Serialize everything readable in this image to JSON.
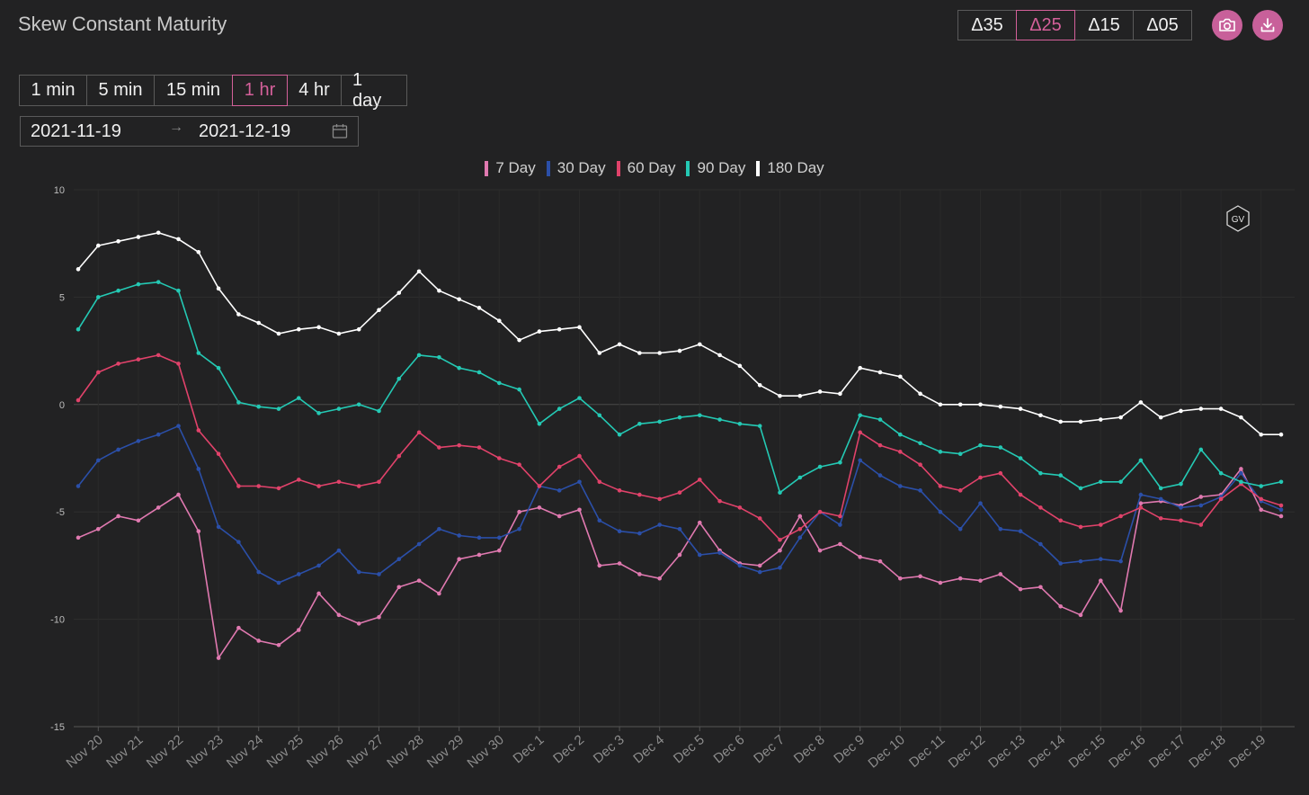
{
  "header": {
    "title": "Skew Constant Maturity"
  },
  "delta_buttons": [
    {
      "label": "Δ35",
      "active": false
    },
    {
      "label": "Δ25",
      "active": true
    },
    {
      "label": "Δ15",
      "active": false
    },
    {
      "label": "Δ05",
      "active": false
    }
  ],
  "icons": {
    "screenshot": "camera-icon",
    "download": "download-icon",
    "calendar": "calendar-icon",
    "watermark": "gv-logo"
  },
  "intervals": [
    {
      "label": "1 min",
      "active": false
    },
    {
      "label": "5 min",
      "active": false
    },
    {
      "label": "15 min",
      "active": false
    },
    {
      "label": "1 hr",
      "active": true
    },
    {
      "label": "4 hr",
      "active": false
    },
    {
      "label": "1 day",
      "active": false
    }
  ],
  "date_range": {
    "start": "2021-11-19",
    "separator": "→",
    "end": "2021-12-19"
  },
  "colors": {
    "accent": "#d4609a",
    "background": "#222223"
  },
  "chart_data": {
    "type": "line",
    "title": "",
    "xlabel": "",
    "ylabel": "",
    "ylim": [
      -15,
      10
    ],
    "yticks": [
      10,
      5,
      0,
      -5,
      -10,
      -15
    ],
    "x": [
      "Nov 19 12:00",
      "Nov 20",
      "Nov 20 12:00",
      "Nov 21",
      "Nov 21 12:00",
      "Nov 22",
      "Nov 22 12:00",
      "Nov 23",
      "Nov 23 12:00",
      "Nov 24",
      "Nov 24 12:00",
      "Nov 25",
      "Nov 25 12:00",
      "Nov 26",
      "Nov 26 12:00",
      "Nov 27",
      "Nov 27 12:00",
      "Nov 28",
      "Nov 28 12:00",
      "Nov 29",
      "Nov 29 12:00",
      "Nov 30",
      "Nov 30 12:00",
      "Dec 1",
      "Dec 1 12:00",
      "Dec 2",
      "Dec 2 12:00",
      "Dec 3",
      "Dec 3 12:00",
      "Dec 4",
      "Dec 4 12:00",
      "Dec 5",
      "Dec 5 12:00",
      "Dec 6",
      "Dec 6 12:00",
      "Dec 7",
      "Dec 7 12:00",
      "Dec 8",
      "Dec 8 12:00",
      "Dec 9",
      "Dec 9 12:00",
      "Dec 10",
      "Dec 10 12:00",
      "Dec 11",
      "Dec 11 12:00",
      "Dec 12",
      "Dec 12 12:00",
      "Dec 13",
      "Dec 13 12:00",
      "Dec 14",
      "Dec 14 12:00",
      "Dec 15",
      "Dec 15 12:00",
      "Dec 16",
      "Dec 16 12:00",
      "Dec 17",
      "Dec 17 12:00",
      "Dec 18",
      "Dec 18 12:00",
      "Dec 19",
      "Dec 19 12:00"
    ],
    "x_tick_labels": [
      "Nov 20",
      "Nov 21",
      "Nov 22",
      "Nov 23",
      "Nov 24",
      "Nov 25",
      "Nov 26",
      "Nov 27",
      "Nov 28",
      "Nov 29",
      "Nov 30",
      "Dec 1",
      "Dec 2",
      "Dec 3",
      "Dec 4",
      "Dec 5",
      "Dec 6",
      "Dec 7",
      "Dec 8",
      "Dec 9",
      "Dec 10",
      "Dec 11",
      "Dec 12",
      "Dec 13",
      "Dec 14",
      "Dec 15",
      "Dec 16",
      "Dec 17",
      "Dec 18",
      "Dec 19"
    ],
    "grid": true,
    "legend_position": "top-center",
    "series": [
      {
        "name": "7 Day",
        "color": "#e079b0",
        "values": [
          -6.2,
          -5.8,
          -5.2,
          -5.4,
          -4.8,
          -4.2,
          -5.9,
          -11.8,
          -10.4,
          -11.0,
          -11.2,
          -10.5,
          -8.8,
          -9.8,
          -10.2,
          -9.9,
          -8.5,
          -8.2,
          -8.8,
          -7.2,
          -7.0,
          -6.8,
          -5.0,
          -4.8,
          -5.2,
          -4.9,
          -7.5,
          -7.4,
          -7.9,
          -8.1,
          -7.0,
          -5.5,
          -6.8,
          -7.4,
          -7.5,
          -6.8,
          -5.2,
          -6.8,
          -6.5,
          -7.1,
          -7.3,
          -8.1,
          -8.0,
          -8.3,
          -8.1,
          -8.2,
          -7.9,
          -8.6,
          -8.5,
          -9.4,
          -9.8,
          -8.2,
          -9.6,
          -4.6,
          -4.5,
          -4.7,
          -4.3,
          -4.2,
          -3.0,
          -4.9,
          -5.2
        ]
      },
      {
        "name": "30 Day",
        "color": "#2b4fa8",
        "values": [
          -3.8,
          -2.6,
          -2.1,
          -1.7,
          -1.4,
          -1.0,
          -3.0,
          -5.7,
          -6.4,
          -7.8,
          -8.3,
          -7.9,
          -7.5,
          -6.8,
          -7.8,
          -7.9,
          -7.2,
          -6.5,
          -5.8,
          -6.1,
          -6.2,
          -6.2,
          -5.8,
          -3.8,
          -4.0,
          -3.6,
          -5.4,
          -5.9,
          -6.0,
          -5.6,
          -5.8,
          -7.0,
          -6.9,
          -7.5,
          -7.8,
          -7.6,
          -6.2,
          -5.0,
          -5.6,
          -2.6,
          -3.3,
          -3.8,
          -4.0,
          -5.0,
          -5.8,
          -4.6,
          -5.8,
          -5.9,
          -6.5,
          -7.4,
          -7.3,
          -7.2,
          -7.3,
          -4.2,
          -4.4,
          -4.8,
          -4.7,
          -4.3,
          -3.2,
          -4.5,
          -4.9
        ]
      },
      {
        "name": "60 Day",
        "color": "#e0426a",
        "values": [
          0.2,
          1.5,
          1.9,
          2.1,
          2.3,
          1.9,
          -1.2,
          -2.3,
          -3.8,
          -3.8,
          -3.9,
          -3.5,
          -3.8,
          -3.6,
          -3.8,
          -3.6,
          -2.4,
          -1.3,
          -2.0,
          -1.9,
          -2.0,
          -2.5,
          -2.8,
          -3.8,
          -2.9,
          -2.4,
          -3.6,
          -4.0,
          -4.2,
          -4.4,
          -4.1,
          -3.5,
          -4.5,
          -4.8,
          -5.3,
          -6.3,
          -5.8,
          -5.0,
          -5.2,
          -1.3,
          -1.9,
          -2.2,
          -2.8,
          -3.8,
          -4.0,
          -3.4,
          -3.2,
          -4.2,
          -4.8,
          -5.4,
          -5.7,
          -5.6,
          -5.2,
          -4.8,
          -5.3,
          -5.4,
          -5.6,
          -4.4,
          -3.7,
          -4.4,
          -4.7
        ]
      },
      {
        "name": "90 Day",
        "color": "#24c9b4",
        "values": [
          3.5,
          5.0,
          5.3,
          5.6,
          5.7,
          5.3,
          2.4,
          1.7,
          0.1,
          -0.1,
          -0.2,
          0.3,
          -0.4,
          -0.2,
          0.0,
          -0.3,
          1.2,
          2.3,
          2.2,
          1.7,
          1.5,
          1.0,
          0.7,
          -0.9,
          -0.2,
          0.3,
          -0.5,
          -1.4,
          -0.9,
          -0.8,
          -0.6,
          -0.5,
          -0.7,
          -0.9,
          -1.0,
          -4.1,
          -3.4,
          -2.9,
          -2.7,
          -0.5,
          -0.7,
          -1.4,
          -1.8,
          -2.2,
          -2.3,
          -1.9,
          -2.0,
          -2.5,
          -3.2,
          -3.3,
          -3.9,
          -3.6,
          -3.6,
          -2.6,
          -3.9,
          -3.7,
          -2.1,
          -3.2,
          -3.6,
          -3.8,
          -3.6
        ]
      },
      {
        "name": "180 Day",
        "color": "#ffffff",
        "values": [
          6.3,
          7.4,
          7.6,
          7.8,
          8.0,
          7.7,
          7.1,
          5.4,
          4.2,
          3.8,
          3.3,
          3.5,
          3.6,
          3.3,
          3.5,
          4.4,
          5.2,
          6.2,
          5.3,
          4.9,
          4.5,
          3.9,
          3.0,
          3.4,
          3.5,
          3.6,
          2.4,
          2.8,
          2.4,
          2.4,
          2.5,
          2.8,
          2.3,
          1.8,
          0.9,
          0.4,
          0.4,
          0.6,
          0.5,
          1.7,
          1.5,
          1.3,
          0.5,
          0.0,
          0.0,
          0.0,
          -0.1,
          -0.2,
          -0.5,
          -0.8,
          -0.8,
          -0.7,
          -0.6,
          0.1,
          -0.6,
          -0.3,
          -0.2,
          -0.2,
          -0.6,
          -1.4,
          -1.4
        ]
      }
    ]
  }
}
